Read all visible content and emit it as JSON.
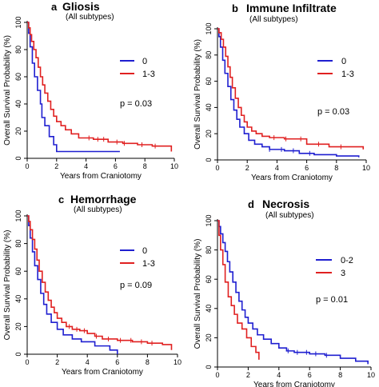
{
  "chart_data": [
    {
      "type": "line",
      "letter": "a",
      "title": "Gliosis",
      "subtitle": "(All subtypes)",
      "xlabel": "Years from Craniotomy",
      "ylabel": "Overall Survival Probability (%)",
      "xlim": [
        0,
        10
      ],
      "ylim": [
        0,
        100
      ],
      "xticks": [
        0,
        2,
        4,
        6,
        8,
        10
      ],
      "yticks": [
        0,
        20,
        40,
        60,
        80,
        100
      ],
      "pvalue_text": "p =  0.03",
      "series": [
        {
          "name": "0",
          "color": "#1f1fd0",
          "x": [
            0,
            0.1,
            0.2,
            0.35,
            0.5,
            0.7,
            0.9,
            1.0,
            1.2,
            1.5,
            1.8,
            2.0,
            6.3
          ],
          "y": [
            100,
            92,
            82,
            70,
            60,
            50,
            40,
            30,
            24,
            16,
            10,
            5,
            5
          ],
          "censor_x": []
        },
        {
          "name": "1-3",
          "color": "#e02020",
          "x": [
            0,
            0.1,
            0.2,
            0.3,
            0.45,
            0.6,
            0.75,
            0.9,
            1.05,
            1.2,
            1.4,
            1.6,
            1.8,
            2.0,
            2.3,
            2.6,
            3.0,
            3.5,
            4.5,
            5.5,
            6.5,
            7.5,
            8.5,
            9.5,
            9.8
          ],
          "y": [
            100,
            96,
            91,
            86,
            80,
            74,
            67,
            60,
            54,
            48,
            42,
            36,
            31,
            27,
            24,
            21,
            18,
            15,
            14,
            12,
            11,
            10,
            9,
            9,
            5
          ],
          "censor_x": [
            4.2,
            4.8,
            5.2,
            6.1,
            6.6,
            7.8,
            8.7
          ]
        }
      ]
    },
    {
      "type": "line",
      "letter": "b",
      "title": "Immune Infiltrate",
      "subtitle": "(All subtypes)",
      "xlabel": "Years from Craniotomy",
      "ylabel": "Overall Survival Probability (%)",
      "xlim": [
        0,
        10
      ],
      "ylim": [
        0,
        100
      ],
      "xticks": [
        0,
        2,
        4,
        6,
        8,
        10
      ],
      "yticks": [
        0,
        20,
        40,
        60,
        80,
        100
      ],
      "pvalue_text": "p =  0.03",
      "series": [
        {
          "name": "0",
          "color": "#1f1fd0",
          "x": [
            0,
            0.1,
            0.2,
            0.35,
            0.5,
            0.7,
            0.9,
            1.1,
            1.3,
            1.5,
            1.8,
            2.1,
            2.5,
            3.0,
            3.5,
            4.5,
            5.5,
            6.5,
            8.0,
            9.5
          ],
          "y": [
            100,
            94,
            86,
            76,
            66,
            56,
            46,
            38,
            31,
            25,
            20,
            15,
            12,
            10,
            8,
            7,
            5,
            4,
            3,
            2
          ],
          "censor_x": [
            3.5,
            4.3,
            5.1,
            6.2
          ]
        },
        {
          "name": "1-3",
          "color": "#e02020",
          "x": [
            0,
            0.1,
            0.25,
            0.4,
            0.55,
            0.7,
            0.85,
            1.0,
            1.2,
            1.4,
            1.6,
            1.8,
            2.0,
            2.3,
            2.6,
            3.0,
            3.5,
            4.5,
            6.0,
            7.5,
            9.8
          ],
          "y": [
            100,
            97,
            92,
            86,
            79,
            71,
            63,
            55,
            47,
            40,
            34,
            29,
            25,
            22,
            20,
            18,
            17,
            16,
            12,
            10,
            8
          ],
          "censor_x": [
            3.8,
            4.6,
            5.6,
            6.8,
            8.3
          ]
        }
      ]
    },
    {
      "type": "line",
      "letter": "c",
      "title": "Hemorrhage",
      "subtitle": "(All subtypes)",
      "xlabel": "Years from Craniotomy",
      "ylabel": "Overall Survival Probability (%)",
      "xlim": [
        0,
        10
      ],
      "ylim": [
        0,
        100
      ],
      "xticks": [
        0,
        2,
        4,
        6,
        8,
        10
      ],
      "yticks": [
        0,
        20,
        40,
        60,
        80,
        100
      ],
      "pvalue_text": "p =  0.09",
      "series": [
        {
          "name": "0",
          "color": "#1f1fd0",
          "x": [
            0,
            0.1,
            0.2,
            0.35,
            0.5,
            0.7,
            0.9,
            1.1,
            1.3,
            1.6,
            2.0,
            2.4,
            3.0,
            3.6,
            4.5,
            5.5,
            6.0
          ],
          "y": [
            100,
            93,
            84,
            74,
            64,
            54,
            44,
            36,
            29,
            23,
            18,
            14,
            11,
            9,
            6,
            3,
            0
          ],
          "censor_x": []
        },
        {
          "name": "1-3",
          "color": "#e02020",
          "x": [
            0,
            0.1,
            0.2,
            0.35,
            0.5,
            0.65,
            0.8,
            1.0,
            1.2,
            1.4,
            1.6,
            1.8,
            2.0,
            2.3,
            2.6,
            3.0,
            3.5,
            4.0,
            4.5,
            5.0,
            6.0,
            7.0,
            8.0,
            9.0,
            9.6
          ],
          "y": [
            100,
            96,
            90,
            83,
            76,
            68,
            60,
            52,
            45,
            39,
            34,
            30,
            26,
            23,
            20,
            18,
            17,
            15,
            13,
            11,
            10,
            9,
            8,
            7,
            3
          ],
          "censor_x": [
            2.8,
            3.3,
            3.8,
            4.6,
            5.4,
            6.2,
            6.9,
            7.6,
            8.3
          ]
        }
      ]
    },
    {
      "type": "line",
      "letter": "d",
      "title": "Necrosis",
      "subtitle": "(All subtypes)",
      "xlabel": "Years from Craniotomy",
      "ylabel": "Overall Survival Probability (%)",
      "xlim": [
        0,
        10
      ],
      "ylim": [
        0,
        100
      ],
      "xticks": [
        0,
        2,
        4,
        6,
        8,
        10
      ],
      "yticks": [
        0,
        20,
        40,
        60,
        80,
        100
      ],
      "pvalue_text": "p =  0.01",
      "series": [
        {
          "name": "0-2",
          "color": "#1f1fd0",
          "x": [
            0,
            0.1,
            0.2,
            0.35,
            0.5,
            0.65,
            0.8,
            1.0,
            1.2,
            1.4,
            1.6,
            1.8,
            2.0,
            2.3,
            2.6,
            3.0,
            3.5,
            4.0,
            4.5,
            5.0,
            6.0,
            7.0,
            8.0,
            9.0,
            9.8
          ],
          "y": [
            100,
            96,
            91,
            85,
            79,
            72,
            65,
            58,
            51,
            45,
            39,
            34,
            30,
            26,
            22,
            19,
            16,
            13,
            11,
            10,
            9,
            8,
            6,
            4,
            2
          ],
          "censor_x": [
            4.6,
            5.2,
            5.8,
            6.4,
            7.1
          ]
        },
        {
          "name": "3",
          "color": "#e02020",
          "x": [
            0,
            0.1,
            0.2,
            0.35,
            0.5,
            0.7,
            0.9,
            1.1,
            1.3,
            1.6,
            1.9,
            2.2,
            2.5,
            2.7
          ],
          "y": [
            100,
            90,
            80,
            70,
            58,
            48,
            42,
            36,
            30,
            26,
            20,
            14,
            10,
            5
          ],
          "censor_x": []
        }
      ]
    }
  ]
}
